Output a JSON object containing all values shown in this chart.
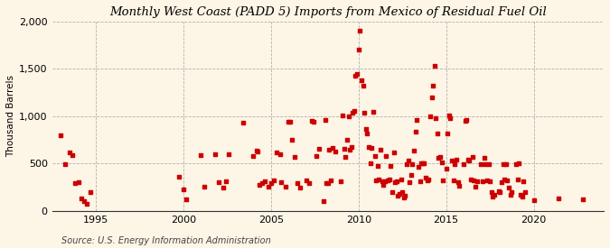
{
  "title": "Monthly West Coast (PADD 5) Imports from Mexico of Residual Fuel Oil",
  "ylabel": "Thousand Barrels",
  "source": "Source: U.S. Energy Information Administration",
  "background_color": "#fdf5e6",
  "plot_bg_color": "#fdf5e6",
  "dot_color": "#cc0000",
  "ylim": [
    0,
    2000
  ],
  "yticks": [
    0,
    500,
    1000,
    1500,
    2000
  ],
  "xlim_start": 1992.5,
  "xlim_end": 2024.0,
  "data": [
    [
      1993.0,
      800
    ],
    [
      1993.25,
      490
    ],
    [
      1993.5,
      620
    ],
    [
      1993.67,
      590
    ],
    [
      1993.83,
      290
    ],
    [
      1994.0,
      300
    ],
    [
      1994.17,
      130
    ],
    [
      1994.33,
      105
    ],
    [
      1994.5,
      80
    ],
    [
      1994.67,
      200
    ],
    [
      1999.75,
      360
    ],
    [
      2000.0,
      230
    ],
    [
      2000.17,
      120
    ],
    [
      2001.0,
      590
    ],
    [
      2001.17,
      260
    ],
    [
      2001.83,
      600
    ],
    [
      2002.0,
      300
    ],
    [
      2002.25,
      250
    ],
    [
      2002.42,
      310
    ],
    [
      2002.58,
      600
    ],
    [
      2003.42,
      930
    ],
    [
      2004.0,
      580
    ],
    [
      2004.17,
      640
    ],
    [
      2004.25,
      630
    ],
    [
      2004.33,
      280
    ],
    [
      2004.5,
      290
    ],
    [
      2004.67,
      310
    ],
    [
      2004.83,
      260
    ],
    [
      2005.0,
      290
    ],
    [
      2005.17,
      320
    ],
    [
      2005.33,
      620
    ],
    [
      2005.5,
      600
    ],
    [
      2005.58,
      300
    ],
    [
      2005.83,
      260
    ],
    [
      2006.0,
      940
    ],
    [
      2006.08,
      940
    ],
    [
      2006.17,
      750
    ],
    [
      2006.33,
      570
    ],
    [
      2006.5,
      290
    ],
    [
      2006.67,
      250
    ],
    [
      2007.0,
      320
    ],
    [
      2007.17,
      290
    ],
    [
      2007.33,
      950
    ],
    [
      2007.42,
      940
    ],
    [
      2007.58,
      580
    ],
    [
      2007.75,
      660
    ],
    [
      2008.0,
      100
    ],
    [
      2008.08,
      960
    ],
    [
      2008.17,
      290
    ],
    [
      2008.25,
      290
    ],
    [
      2008.33,
      650
    ],
    [
      2008.42,
      320
    ],
    [
      2008.5,
      670
    ],
    [
      2008.67,
      630
    ],
    [
      2009.0,
      310
    ],
    [
      2009.08,
      1010
    ],
    [
      2009.17,
      660
    ],
    [
      2009.25,
      570
    ],
    [
      2009.33,
      750
    ],
    [
      2009.42,
      1000
    ],
    [
      2009.5,
      650
    ],
    [
      2009.58,
      680
    ],
    [
      2009.67,
      1040
    ],
    [
      2009.75,
      1060
    ],
    [
      2009.83,
      1430
    ],
    [
      2009.92,
      1450
    ],
    [
      2010.0,
      1700
    ],
    [
      2010.08,
      1900
    ],
    [
      2010.17,
      1380
    ],
    [
      2010.25,
      1320
    ],
    [
      2010.33,
      1040
    ],
    [
      2010.42,
      870
    ],
    [
      2010.5,
      820
    ],
    [
      2010.58,
      680
    ],
    [
      2010.67,
      500
    ],
    [
      2010.75,
      670
    ],
    [
      2010.83,
      1050
    ],
    [
      2010.92,
      580
    ],
    [
      2011.0,
      320
    ],
    [
      2011.08,
      480
    ],
    [
      2011.17,
      330
    ],
    [
      2011.25,
      650
    ],
    [
      2011.33,
      310
    ],
    [
      2011.42,
      280
    ],
    [
      2011.5,
      310
    ],
    [
      2011.58,
      580
    ],
    [
      2011.67,
      320
    ],
    [
      2011.75,
      330
    ],
    [
      2011.83,
      480
    ],
    [
      2011.92,
      200
    ],
    [
      2012.0,
      620
    ],
    [
      2012.08,
      300
    ],
    [
      2012.17,
      310
    ],
    [
      2012.25,
      160
    ],
    [
      2012.33,
      180
    ],
    [
      2012.42,
      330
    ],
    [
      2012.5,
      200
    ],
    [
      2012.58,
      140
    ],
    [
      2012.67,
      160
    ],
    [
      2012.75,
      490
    ],
    [
      2012.83,
      530
    ],
    [
      2012.92,
      300
    ],
    [
      2013.0,
      380
    ],
    [
      2013.08,
      490
    ],
    [
      2013.17,
      640
    ],
    [
      2013.25,
      840
    ],
    [
      2013.33,
      960
    ],
    [
      2013.42,
      470
    ],
    [
      2013.5,
      310
    ],
    [
      2013.58,
      500
    ],
    [
      2013.67,
      500
    ],
    [
      2013.75,
      500
    ],
    [
      2013.83,
      350
    ],
    [
      2013.92,
      320
    ],
    [
      2014.0,
      330
    ],
    [
      2014.08,
      1000
    ],
    [
      2014.17,
      1200
    ],
    [
      2014.25,
      1320
    ],
    [
      2014.33,
      1530
    ],
    [
      2014.42,
      980
    ],
    [
      2014.5,
      820
    ],
    [
      2014.58,
      560
    ],
    [
      2014.67,
      570
    ],
    [
      2014.75,
      510
    ],
    [
      2014.83,
      320
    ],
    [
      2015.0,
      450
    ],
    [
      2015.08,
      820
    ],
    [
      2015.17,
      1010
    ],
    [
      2015.25,
      980
    ],
    [
      2015.33,
      530
    ],
    [
      2015.42,
      320
    ],
    [
      2015.5,
      490
    ],
    [
      2015.58,
      540
    ],
    [
      2015.67,
      300
    ],
    [
      2015.75,
      270
    ],
    [
      2016.0,
      490
    ],
    [
      2016.08,
      950
    ],
    [
      2016.17,
      960
    ],
    [
      2016.25,
      540
    ],
    [
      2016.33,
      530
    ],
    [
      2016.42,
      330
    ],
    [
      2016.5,
      570
    ],
    [
      2016.58,
      320
    ],
    [
      2016.67,
      260
    ],
    [
      2016.75,
      310
    ],
    [
      2017.0,
      490
    ],
    [
      2017.08,
      310
    ],
    [
      2017.17,
      560
    ],
    [
      2017.25,
      490
    ],
    [
      2017.33,
      320
    ],
    [
      2017.42,
      490
    ],
    [
      2017.5,
      310
    ],
    [
      2017.58,
      200
    ],
    [
      2017.67,
      150
    ],
    [
      2017.75,
      170
    ],
    [
      2018.0,
      210
    ],
    [
      2018.08,
      200
    ],
    [
      2018.17,
      300
    ],
    [
      2018.25,
      490
    ],
    [
      2018.33,
      330
    ],
    [
      2018.42,
      490
    ],
    [
      2018.5,
      320
    ],
    [
      2018.58,
      250
    ],
    [
      2018.67,
      170
    ],
    [
      2018.75,
      200
    ],
    [
      2019.0,
      490
    ],
    [
      2019.08,
      330
    ],
    [
      2019.17,
      500
    ],
    [
      2019.25,
      170
    ],
    [
      2019.33,
      150
    ],
    [
      2019.42,
      310
    ],
    [
      2019.5,
      200
    ],
    [
      2020.0,
      110
    ],
    [
      2021.42,
      130
    ],
    [
      2022.83,
      120
    ]
  ]
}
